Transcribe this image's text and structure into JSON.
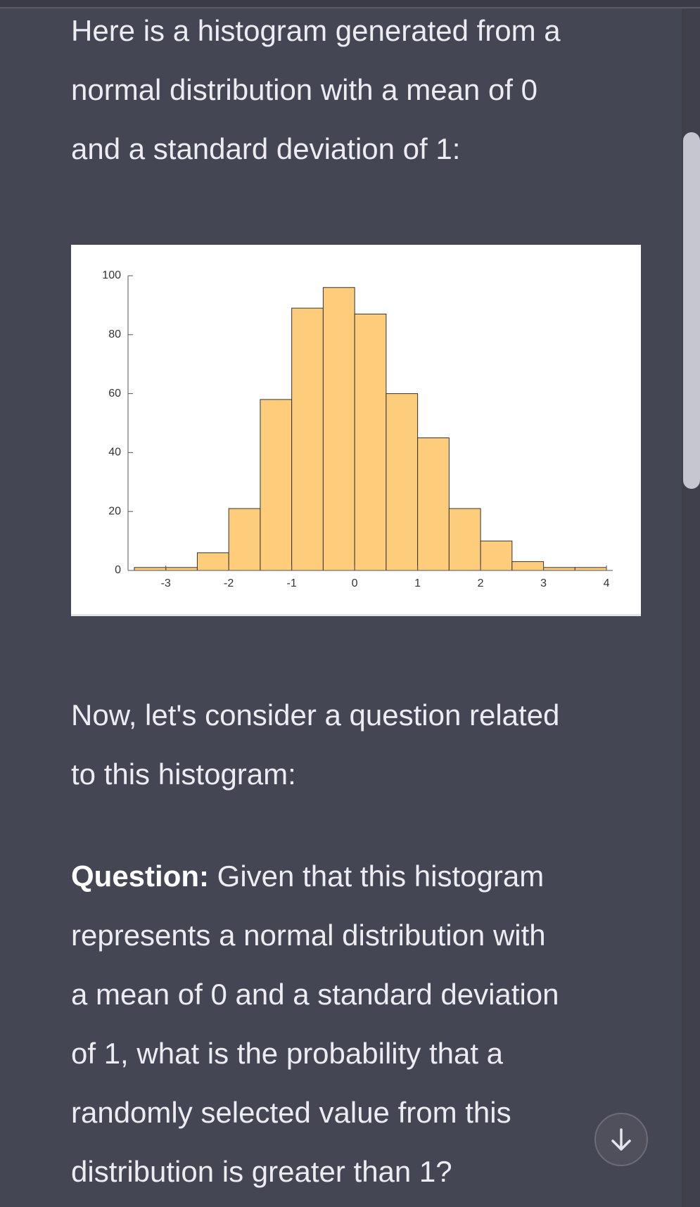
{
  "message": {
    "intro_lines": [
      "Here is a histogram generated from a",
      "normal distribution with a mean of 0",
      "and a standard deviation of 1:"
    ],
    "followup_lines": [
      "Now, let's consider a question related",
      "to this histogram:"
    ],
    "question_label": "Question:",
    "question_lines": [
      "Given that this histogram",
      "represents a normal distribution with",
      "a mean of 0 and a standard deviation",
      "of 1, what is the probability that a",
      "randomly selected value from this",
      "distribution is greater than 1?"
    ]
  },
  "chart_data": {
    "type": "histogram",
    "bins": [
      -3.5,
      -3,
      -2.5,
      -2,
      -1.5,
      -1,
      -0.5,
      0,
      0.5,
      1,
      1.5,
      2,
      2.5,
      3,
      3.5,
      4
    ],
    "counts": [
      1,
      1,
      6,
      21,
      58,
      89,
      96,
      87,
      60,
      45,
      21,
      10,
      3,
      1,
      1
    ],
    "color": "#fdcd7c",
    "xlim": [
      -3.6,
      4.1
    ],
    "xticks": [
      -3,
      -2,
      -1,
      0,
      1,
      2,
      3,
      4
    ],
    "ylim": [
      0,
      100
    ],
    "yticks": [
      0,
      20,
      40,
      60,
      80,
      100
    ]
  }
}
